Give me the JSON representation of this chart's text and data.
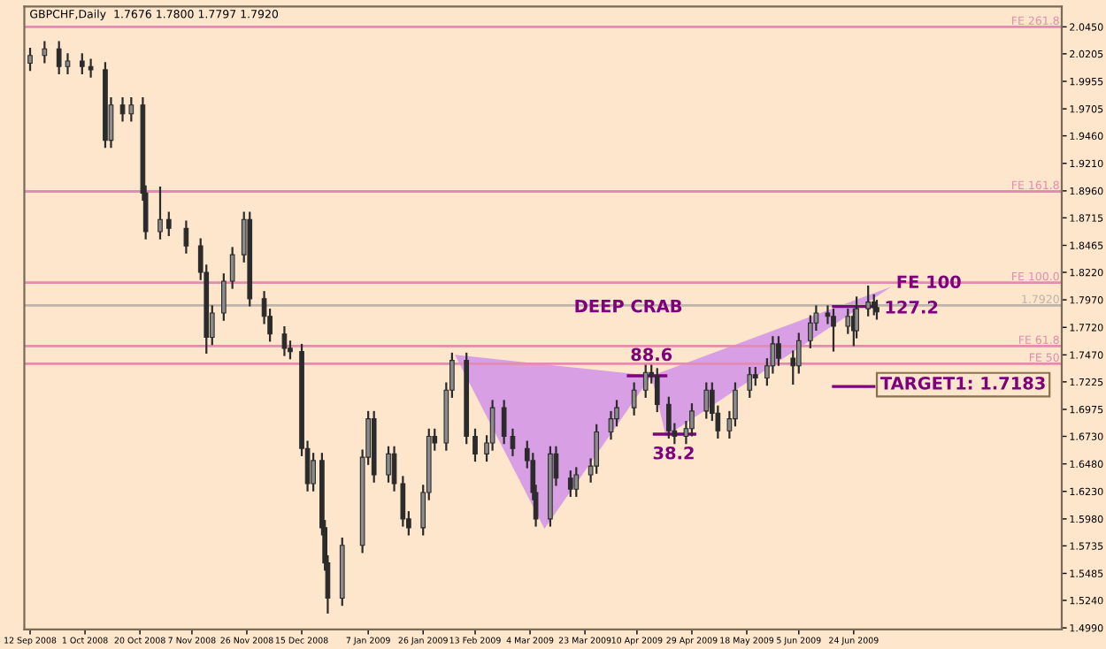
{
  "chart_data": {
    "type": "candlestick",
    "title": "GBPCHF,Daily  1.7676 1.7800 1.7797 1.7920",
    "color": "#2b2b2b",
    "x": [
      "2008-09-12",
      "2008-09-17",
      "2008-09-22",
      "2008-09-25",
      "2008-09-30",
      "2008-10-03",
      "2008-10-08",
      "2008-10-10",
      "2008-10-14",
      "2008-10-17",
      "2008-10-21",
      "2008-10-22",
      "2008-10-27",
      "2008-10-30",
      "2008-11-05",
      "2008-11-10",
      "2008-11-12",
      "2008-11-14",
      "2008-11-18",
      "2008-11-21",
      "2008-11-25",
      "2008-11-27",
      "2008-12-02",
      "2008-12-04",
      "2008-12-09",
      "2008-12-11",
      "2008-12-15",
      "2008-12-17",
      "2008-12-19",
      "2008-12-22",
      "2008-12-23",
      "2008-12-24",
      "2008-12-29",
      "2009-01-05",
      "2009-01-07",
      "2009-01-09",
      "2009-01-14",
      "2009-01-16",
      "2009-01-19",
      "2009-01-21",
      "2009-01-26",
      "2009-01-28",
      "2009-01-30",
      "2009-02-03",
      "2009-02-05",
      "2009-02-10",
      "2009-02-13",
      "2009-02-17",
      "2009-02-19",
      "2009-02-23",
      "2009-02-26",
      "2009-03-03",
      "2009-03-05",
      "2009-03-06",
      "2009-03-11",
      "2009-03-13",
      "2009-03-18",
      "2009-03-20",
      "2009-03-25",
      "2009-03-27",
      "2009-04-01",
      "2009-04-03",
      "2009-04-09",
      "2009-04-13",
      "2009-04-15",
      "2009-04-17",
      "2009-04-21",
      "2009-04-23",
      "2009-04-27",
      "2009-04-29",
      "2009-05-04",
      "2009-05-06",
      "2009-05-08",
      "2009-05-12",
      "2009-05-14",
      "2009-05-19",
      "2009-05-21",
      "2009-05-25",
      "2009-05-27",
      "2009-05-29",
      "2009-06-03",
      "2009-06-05",
      "2009-06-09",
      "2009-06-11",
      "2009-06-15",
      "2009-06-17",
      "2009-06-22",
      "2009-06-24",
      "2009-06-25",
      "2009-06-29",
      "2009-07-01",
      "2009-07-02"
    ],
    "ohlc": [
      [
        2.012,
        2.026,
        2.005,
        2.019
      ],
      [
        2.019,
        2.032,
        2.012,
        2.025
      ],
      [
        2.025,
        2.032,
        2.002,
        2.009
      ],
      [
        2.009,
        2.021,
        2.002,
        2.014
      ],
      [
        2.014,
        2.021,
        2.002,
        2.009
      ],
      [
        2.009,
        2.016,
        1.999,
        2.006
      ],
      [
        2.006,
        2.013,
        1.935,
        1.942
      ],
      [
        1.942,
        1.981,
        1.935,
        1.974
      ],
      [
        1.974,
        1.981,
        1.959,
        1.966
      ],
      [
        1.966,
        1.981,
        1.959,
        1.974
      ],
      [
        1.974,
        1.981,
        1.887,
        1.894
      ],
      [
        1.894,
        1.901,
        1.852,
        1.859
      ],
      [
        1.859,
        1.9,
        1.852,
        1.87
      ],
      [
        1.87,
        1.877,
        1.855,
        1.862
      ],
      [
        1.862,
        1.869,
        1.839,
        1.846
      ],
      [
        1.846,
        1.853,
        1.815,
        1.822
      ],
      [
        1.822,
        1.829,
        1.748,
        1.763
      ],
      [
        1.763,
        1.792,
        1.756,
        1.785
      ],
      [
        1.785,
        1.821,
        1.778,
        1.814
      ],
      [
        1.814,
        1.845,
        1.807,
        1.838
      ],
      [
        1.838,
        1.877,
        1.831,
        1.87
      ],
      [
        1.87,
        1.877,
        1.791,
        1.798
      ],
      [
        1.798,
        1.805,
        1.775,
        1.782
      ],
      [
        1.782,
        1.789,
        1.759,
        1.766
      ],
      [
        1.766,
        1.773,
        1.746,
        1.753
      ],
      [
        1.753,
        1.76,
        1.743,
        1.75
      ],
      [
        1.75,
        1.757,
        1.655,
        1.662
      ],
      [
        1.662,
        1.669,
        1.623,
        1.63
      ],
      [
        1.63,
        1.658,
        1.623,
        1.651
      ],
      [
        1.651,
        1.658,
        1.583,
        1.59
      ],
      [
        1.59,
        1.597,
        1.551,
        1.558
      ],
      [
        1.558,
        1.565,
        1.512,
        1.526
      ],
      [
        1.526,
        1.581,
        1.519,
        1.574
      ],
      [
        1.574,
        1.661,
        1.567,
        1.654
      ],
      [
        1.654,
        1.696,
        1.647,
        1.689
      ],
      [
        1.689,
        1.696,
        1.631,
        1.638
      ],
      [
        1.638,
        1.664,
        1.631,
        1.657
      ],
      [
        1.657,
        1.664,
        1.623,
        1.63
      ],
      [
        1.63,
        1.637,
        1.591,
        1.598
      ],
      [
        1.598,
        1.605,
        1.583,
        1.59
      ],
      [
        1.59,
        1.629,
        1.583,
        1.622
      ],
      [
        1.622,
        1.68,
        1.615,
        1.673
      ],
      [
        1.673,
        1.68,
        1.66,
        1.667
      ],
      [
        1.667,
        1.722,
        1.66,
        1.715
      ],
      [
        1.715,
        1.749,
        1.708,
        1.742
      ],
      [
        1.742,
        1.749,
        1.666,
        1.673
      ],
      [
        1.673,
        1.68,
        1.65,
        1.657
      ],
      [
        1.657,
        1.674,
        1.65,
        1.667
      ],
      [
        1.667,
        1.706,
        1.66,
        1.699
      ],
      [
        1.699,
        1.706,
        1.666,
        1.673
      ],
      [
        1.673,
        1.68,
        1.655,
        1.662
      ],
      [
        1.662,
        1.669,
        1.644,
        1.651
      ],
      [
        1.651,
        1.658,
        1.615,
        1.622
      ],
      [
        1.622,
        1.629,
        1.591,
        1.598
      ],
      [
        1.598,
        1.664,
        1.591,
        1.657
      ],
      [
        1.657,
        1.664,
        1.628,
        1.635
      ],
      [
        1.635,
        1.642,
        1.618,
        1.625
      ],
      [
        1.625,
        1.645,
        1.618,
        1.638
      ],
      [
        1.638,
        1.653,
        1.631,
        1.646
      ],
      [
        1.646,
        1.684,
        1.639,
        1.677
      ],
      [
        1.677,
        1.696,
        1.67,
        1.689
      ],
      [
        1.689,
        1.706,
        1.682,
        1.699
      ],
      [
        1.699,
        1.722,
        1.692,
        1.715
      ],
      [
        1.715,
        1.738,
        1.708,
        1.731
      ],
      [
        1.731,
        1.738,
        1.721,
        1.728
      ],
      [
        1.728,
        1.735,
        1.695,
        1.702
      ],
      [
        1.702,
        1.709,
        1.671,
        1.678
      ],
      [
        1.678,
        1.685,
        1.666,
        1.673
      ],
      [
        1.673,
        1.687,
        1.666,
        1.68
      ],
      [
        1.68,
        1.703,
        1.673,
        1.696
      ],
      [
        1.696,
        1.722,
        1.689,
        1.715
      ],
      [
        1.715,
        1.722,
        1.687,
        1.694
      ],
      [
        1.694,
        1.701,
        1.671,
        1.678
      ],
      [
        1.678,
        1.696,
        1.671,
        1.689
      ],
      [
        1.689,
        1.722,
        1.682,
        1.715
      ],
      [
        1.715,
        1.736,
        1.708,
        1.729
      ],
      [
        1.729,
        1.736,
        1.719,
        1.726
      ],
      [
        1.726,
        1.744,
        1.719,
        1.737
      ],
      [
        1.737,
        1.764,
        1.73,
        1.757
      ],
      [
        1.757,
        1.764,
        1.737,
        1.744
      ],
      [
        1.744,
        1.751,
        1.72,
        1.737
      ],
      [
        1.737,
        1.767,
        1.73,
        1.76
      ],
      [
        1.76,
        1.783,
        1.753,
        1.776
      ],
      [
        1.776,
        1.792,
        1.769,
        1.785
      ],
      [
        1.785,
        1.792,
        1.775,
        1.782
      ],
      [
        1.782,
        1.789,
        1.75,
        1.773
      ],
      [
        1.773,
        1.789,
        1.766,
        1.782
      ],
      [
        1.782,
        1.789,
        1.755,
        1.769
      ],
      [
        1.769,
        1.8,
        1.762,
        1.789
      ],
      [
        1.789,
        1.81,
        1.782,
        1.795
      ],
      [
        1.795,
        1.802,
        1.783,
        1.79
      ],
      [
        1.79,
        1.797,
        1.779,
        1.786
      ]
    ],
    "series": [
      {
        "type": "area",
        "color": "#d99fe4",
        "x": [
          "2009-02-06",
          "2009-03-09",
          "2009-04-15",
          "2009-02-06"
        ],
        "values": [
          1.747,
          1.589,
          1.728,
          1.747
        ]
      },
      {
        "type": "area",
        "color": "#d99fe4",
        "x": [
          "2009-04-15",
          "2009-04-20",
          "2009-07-07",
          "2009-04-15"
        ],
        "values": [
          1.728,
          1.673,
          1.809,
          1.728
        ]
      },
      {
        "type": "line",
        "color": "#800080",
        "x": [
          "2009-04-07",
          "2009-04-20"
        ],
        "values": [
          1.728,
          1.728
        ]
      },
      {
        "type": "line",
        "color": "#800080",
        "x": [
          "2009-04-16",
          "2009-04-30"
        ],
        "values": [
          1.675,
          1.675
        ]
      },
      {
        "type": "line",
        "color": "#800080",
        "x": [
          "2009-06-17",
          "2009-07-01"
        ],
        "values": [
          1.791,
          1.791
        ]
      },
      {
        "type": "line",
        "color": "#800080",
        "x": [
          "2009-06-17",
          "2009-07-01"
        ],
        "values": [
          1.7183,
          1.7183
        ]
      }
    ],
    "ref_lines": [
      {
        "axis": "y",
        "value": 2.045,
        "label": "FE 261.8",
        "color": "#e38bb0"
      },
      {
        "axis": "y",
        "value": 1.8955,
        "label": "FE 161.8",
        "color": "#e38bb0"
      },
      {
        "axis": "y",
        "value": 1.8126,
        "label": "FE 100.0",
        "color": "#e38bb0"
      },
      {
        "axis": "y",
        "value": 1.792,
        "label": "1.7920",
        "color": "#bdb3a8"
      },
      {
        "axis": "y",
        "value": 1.755,
        "label": "FE 61.8",
        "color": "#e38bb0"
      },
      {
        "axis": "y",
        "value": 1.739,
        "label": "FE 50",
        "color": "#e38bb0"
      }
    ],
    "annotations": [
      {
        "text": "DEEP CRAB",
        "x": "2009-04-07",
        "y": 1.79
      },
      {
        "text": "88.6",
        "x": "2009-04-15",
        "y": 1.746
      },
      "38.2",
      {
        "text": "127.2",
        "x": "2009-07-14",
        "y": 1.789
      },
      {
        "text": "FE 100",
        "x": "2009-07-20",
        "y": 1.812
      },
      "TARGET1: 1.7183"
    ],
    "xlim": [
      "2008-09-10",
      "2009-09-04"
    ],
    "xticks": [
      {
        "value": "2008-09-12",
        "label": "12 Sep 2008"
      },
      {
        "value": "2008-10-01",
        "label": "1 Oct 2008"
      },
      {
        "value": "2008-10-20",
        "label": "20 Oct 2008"
      },
      {
        "value": "2008-11-07",
        "label": "7 Nov 2008"
      },
      {
        "value": "2008-11-26",
        "label": "26 Nov 2008"
      },
      {
        "value": "2008-12-15",
        "label": "15 Dec 2008"
      },
      {
        "value": "2009-01-07",
        "label": "7 Jan 2009"
      },
      {
        "value": "2009-01-26",
        "label": "26 Jan 2009"
      },
      {
        "value": "2009-02-13",
        "label": "13 Feb 2009"
      },
      {
        "value": "2009-03-04",
        "label": "4 Mar 2009"
      },
      {
        "value": "2009-03-23",
        "label": "23 Mar 2009"
      },
      {
        "value": "2009-04-10",
        "label": "10 Apr 2009"
      },
      {
        "value": "2009-04-29",
        "label": "29 Apr 2009"
      },
      {
        "value": "2009-05-18",
        "label": "18 May 2009"
      },
      {
        "value": "2009-06-05",
        "label": "5 Jun 2009"
      },
      {
        "value": "2009-06-24",
        "label": "24 Jun 2009"
      }
    ],
    "ylim": [
      1.4975,
      2.0635
    ],
    "yticks": [
      {
        "value": 2.045,
        "label": "2.0450"
      },
      {
        "value": 2.0205,
        "label": "2.0205"
      },
      {
        "value": 1.9955,
        "label": "1.9955"
      },
      {
        "value": 1.9705,
        "label": "1.9705"
      },
      {
        "value": 1.946,
        "label": "1.9460"
      },
      {
        "value": 1.921,
        "label": "1.9210"
      },
      {
        "value": 1.896,
        "label": "1.8960"
      },
      {
        "value": 1.8715,
        "label": "1.8715"
      },
      {
        "value": 1.8465,
        "label": "1.8465"
      },
      {
        "value": 1.822,
        "label": "1.8220"
      },
      {
        "value": 1.797,
        "label": "1.7970"
      },
      {
        "value": 1.772,
        "label": "1.7720"
      },
      {
        "value": 1.747,
        "label": "1.7470"
      },
      {
        "value": 1.7225,
        "label": "1.7225"
      },
      {
        "value": 1.6975,
        "label": "1.6975"
      },
      {
        "value": 1.673,
        "label": "1.6730"
      },
      {
        "value": 1.648,
        "label": "1.6480"
      },
      {
        "value": 1.623,
        "label": "1.6230"
      },
      {
        "value": 1.598,
        "label": "1.5980"
      },
      {
        "value": 1.5735,
        "label": "1.5735"
      },
      {
        "value": 1.5485,
        "label": "1.5485"
      },
      {
        "value": 1.524,
        "label": "1.5240"
      },
      {
        "value": 1.499,
        "label": "1.4990"
      }
    ],
    "grid": false,
    "legend": false
  }
}
